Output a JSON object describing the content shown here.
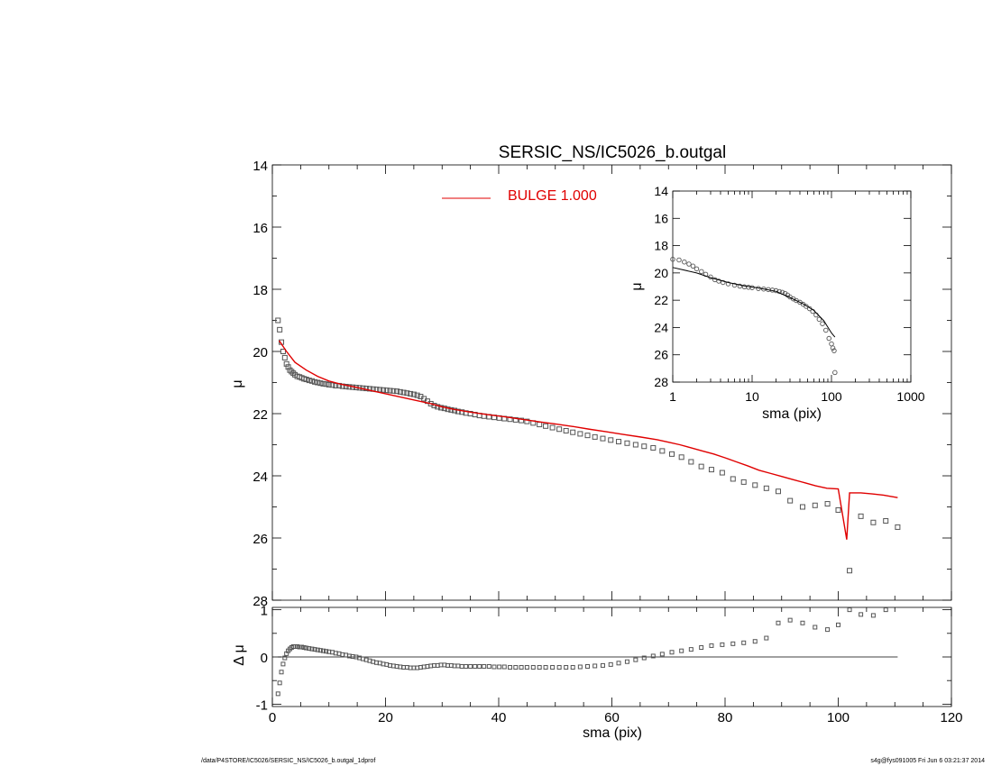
{
  "title": "SERSIC_NS/IC5026_b.outgal",
  "footer": {
    "left": "/data/P4STORE/IC5026/SERSIC_NS/IC5026_b.outgal_1dprof",
    "right": "s4g@fys091005  Fri Jun  6 03:21:37 2014"
  },
  "colors": {
    "model": "#e00000",
    "data": "#555555",
    "axes": "#000000"
  },
  "chart_data": [
    {
      "type": "scatter",
      "panel": "main",
      "title": "SERSIC_NS/IC5026_b.outgal",
      "ylabel": "μ",
      "xlim": [
        0,
        120
      ],
      "ylim": [
        28,
        14
      ],
      "y_inverted": true,
      "yticks": [
        "14",
        "16",
        "18",
        "20",
        "22",
        "24",
        "26",
        "28"
      ],
      "legend": {
        "placement": "top-center",
        "entries": [
          {
            "label": "BULGE  1.000"
          }
        ]
      },
      "series": [
        {
          "role": "data",
          "marker": "square",
          "x": [
            1.0,
            1.3,
            1.6,
            1.9,
            2.2,
            2.5,
            2.8,
            3.1,
            3.4,
            3.7,
            4.0,
            4.4,
            4.8,
            5.2,
            5.6,
            6.0,
            6.5,
            7.0,
            7.5,
            8.0,
            8.5,
            9.0,
            9.5,
            10.0,
            10.6,
            11.2,
            11.8,
            12.4,
            13.0,
            13.6,
            14.2,
            14.8,
            15.4,
            16.0,
            16.6,
            17.2,
            17.8,
            18.4,
            19.0,
            19.6,
            20.2,
            20.8,
            21.4,
            22.0,
            22.6,
            23.2,
            23.8,
            24.4,
            25.0,
            25.6,
            26.2,
            26.8,
            27.4,
            28.0,
            28.6,
            29.2,
            29.8,
            30.4,
            31.0,
            31.6,
            32.2,
            32.8,
            33.5,
            34.2,
            35.0,
            35.8,
            36.6,
            37.4,
            38.3,
            39.2,
            40.1,
            41.0,
            42.0,
            43.0,
            44.0,
            45.0,
            46.1,
            47.2,
            48.3,
            49.5,
            50.7,
            51.9,
            53.1,
            54.4,
            55.7,
            57.0,
            58.4,
            59.8,
            61.2,
            62.7,
            64.2,
            65.7,
            67.3,
            68.9,
            70.6,
            72.3,
            74.0,
            75.8,
            77.6,
            79.5,
            81.4,
            83.3,
            85.3,
            87.3,
            89.4,
            91.5,
            93.7,
            95.9,
            98.1,
            100.0,
            102.0,
            104.0,
            106.2,
            108.4,
            110.5
          ],
          "y": [
            19.0,
            19.3,
            19.7,
            20.0,
            20.2,
            20.4,
            20.5,
            20.6,
            20.65,
            20.7,
            20.75,
            20.8,
            20.82,
            20.85,
            20.88,
            20.9,
            20.93,
            20.95,
            20.98,
            21.0,
            21.02,
            21.04,
            21.05,
            21.07,
            21.08,
            21.1,
            21.1,
            21.12,
            21.13,
            21.14,
            21.15,
            21.16,
            21.17,
            21.18,
            21.19,
            21.2,
            21.21,
            21.22,
            21.23,
            21.24,
            21.25,
            21.26,
            21.27,
            21.28,
            21.3,
            21.32,
            21.34,
            21.36,
            21.38,
            21.41,
            21.45,
            21.52,
            21.6,
            21.68,
            21.74,
            21.78,
            21.81,
            21.83,
            21.86,
            21.88,
            21.9,
            21.93,
            21.95,
            21.98,
            22.0,
            22.03,
            22.06,
            22.08,
            22.1,
            22.12,
            22.14,
            22.16,
            22.18,
            22.2,
            22.22,
            22.25,
            22.3,
            22.35,
            22.4,
            22.45,
            22.5,
            22.55,
            22.6,
            22.65,
            22.7,
            22.75,
            22.8,
            22.85,
            22.9,
            22.95,
            23.0,
            23.05,
            23.1,
            23.2,
            23.3,
            23.4,
            23.55,
            23.7,
            23.8,
            23.9,
            24.1,
            24.2,
            24.3,
            24.4,
            24.5,
            24.8,
            25.0,
            24.95,
            24.9,
            25.1,
            27.05,
            25.3,
            25.5,
            25.45,
            25.65
          ]
        },
        {
          "role": "model",
          "name": "BULGE  1.000",
          "x": [
            1.2,
            2.5,
            4.0,
            6.0,
            8.0,
            10.0,
            12.0,
            14.0,
            16.0,
            18.0,
            20.0,
            22.0,
            24.0,
            26.0,
            28.0,
            30.0,
            32.0,
            35.0,
            38.0,
            41.0,
            44.0,
            47.0,
            50.0,
            53.0,
            56.0,
            59.0,
            62.0,
            65.0,
            68.0,
            70.0,
            72.0,
            74.0,
            76.0,
            78.0,
            80.0,
            82.0,
            84.0,
            86.0,
            88.0,
            90.0,
            92.0,
            94.0,
            96.0,
            98.0,
            100.0,
            101.5,
            102.0,
            104.0,
            106.0,
            108.0,
            110.5
          ],
          "y": [
            19.65,
            20.0,
            20.35,
            20.6,
            20.8,
            20.95,
            21.05,
            21.12,
            21.2,
            21.28,
            21.36,
            21.44,
            21.52,
            21.6,
            21.68,
            21.78,
            21.86,
            21.95,
            22.03,
            22.1,
            22.18,
            22.26,
            22.33,
            22.41,
            22.5,
            22.58,
            22.67,
            22.75,
            22.84,
            22.92,
            23.0,
            23.1,
            23.2,
            23.3,
            23.42,
            23.55,
            23.68,
            23.82,
            23.92,
            24.02,
            24.12,
            24.22,
            24.32,
            24.4,
            24.42,
            26.05,
            24.55,
            24.55,
            24.58,
            24.62,
            24.7
          ]
        }
      ]
    },
    {
      "type": "scatter",
      "panel": "inset",
      "xscale": "log",
      "xlim": [
        1,
        1000
      ],
      "ylim": [
        28,
        14
      ],
      "y_inverted": true,
      "xlabel": "sma (pix)",
      "ylabel": "μ",
      "xticks": [
        "1",
        "10",
        "100",
        "1000"
      ],
      "yticks": [
        "14",
        "16",
        "18",
        "20",
        "22",
        "24",
        "26",
        "28"
      ],
      "series": [
        {
          "role": "data",
          "marker": "circle",
          "x": [
            1.0,
            1.2,
            1.4,
            1.6,
            1.8,
            2.0,
            2.3,
            2.6,
            3.0,
            3.4,
            3.8,
            4.3,
            5.0,
            6.0,
            7.0,
            8.0,
            9.0,
            10.0,
            12.0,
            14.0,
            16.0,
            18.0,
            20.0,
            22.0,
            24.0,
            26.0,
            28.0,
            30.0,
            33.0,
            36.0,
            40.0,
            44.0,
            48.0,
            53.0,
            58.0,
            64.0,
            70.0,
            77.0,
            85.0,
            93.0,
            100.0,
            104.0,
            108.0,
            110.5
          ],
          "y": [
            19.0,
            19.05,
            19.2,
            19.35,
            19.5,
            19.7,
            19.9,
            20.1,
            20.3,
            20.5,
            20.6,
            20.7,
            20.8,
            20.9,
            20.97,
            21.02,
            21.05,
            21.08,
            21.14,
            21.18,
            21.22,
            21.26,
            21.3,
            21.36,
            21.42,
            21.5,
            21.62,
            21.76,
            21.9,
            22.02,
            22.15,
            22.3,
            22.45,
            22.62,
            22.82,
            23.08,
            23.4,
            23.72,
            24.2,
            24.8,
            25.2,
            25.5,
            25.7,
            27.3
          ]
        },
        {
          "role": "model",
          "x": [
            1.0,
            2.0,
            3.0,
            5.0,
            8.0,
            12.0,
            20.0,
            30.0,
            45.0,
            60.0,
            80.0,
            100.0,
            110.5
          ],
          "y": [
            19.6,
            20.0,
            20.35,
            20.7,
            20.95,
            21.1,
            21.35,
            21.8,
            22.3,
            22.75,
            23.5,
            24.4,
            24.7
          ]
        }
      ]
    },
    {
      "type": "scatter",
      "panel": "residual",
      "xlabel": "sma (pix)",
      "ylabel": "Δ μ",
      "xlim": [
        0,
        120
      ],
      "ylim": [
        -1.05,
        1.05
      ],
      "xticks": [
        "0",
        "20",
        "40",
        "60",
        "80",
        "100",
        "120"
      ],
      "yticks": [
        "-1",
        "0",
        "1"
      ],
      "reference_line": 0,
      "series": [
        {
          "role": "residual",
          "marker": "square",
          "x": [
            1.0,
            1.3,
            1.6,
            1.9,
            2.2,
            2.5,
            2.8,
            3.1,
            3.4,
            3.7,
            4.0,
            4.4,
            4.8,
            5.2,
            5.6,
            6.0,
            6.5,
            7.0,
            7.5,
            8.0,
            8.5,
            9.0,
            9.5,
            10.0,
            10.6,
            11.2,
            11.8,
            12.4,
            13.0,
            13.6,
            14.2,
            14.8,
            15.4,
            16.0,
            16.6,
            17.2,
            17.8,
            18.4,
            19.0,
            19.6,
            20.2,
            20.8,
            21.4,
            22.0,
            22.6,
            23.2,
            23.8,
            24.4,
            25.0,
            25.6,
            26.2,
            26.8,
            27.4,
            28.0,
            28.6,
            29.2,
            29.8,
            30.4,
            31.0,
            31.6,
            32.2,
            32.8,
            33.5,
            34.2,
            35.0,
            35.8,
            36.6,
            37.4,
            38.3,
            39.2,
            40.1,
            41.0,
            42.0,
            43.0,
            44.0,
            45.0,
            46.1,
            47.2,
            48.3,
            49.5,
            50.7,
            51.9,
            53.1,
            54.4,
            55.7,
            57.0,
            58.4,
            59.8,
            61.2,
            62.7,
            64.2,
            65.7,
            67.3,
            68.9,
            70.6,
            72.3,
            74.0,
            75.8,
            77.6,
            79.5,
            81.4,
            83.3,
            85.3,
            87.3,
            89.4,
            91.5,
            93.7,
            95.9,
            98.1,
            100.0,
            102.0,
            104.0,
            106.2,
            108.4
          ],
          "y": [
            -0.78,
            -0.55,
            -0.32,
            -0.15,
            -0.02,
            0.07,
            0.13,
            0.17,
            0.2,
            0.22,
            0.22,
            0.22,
            0.21,
            0.21,
            0.2,
            0.19,
            0.18,
            0.17,
            0.16,
            0.15,
            0.14,
            0.13,
            0.12,
            0.11,
            0.1,
            0.08,
            0.07,
            0.05,
            0.04,
            0.02,
            0.01,
            0.0,
            -0.02,
            -0.04,
            -0.06,
            -0.08,
            -0.1,
            -0.12,
            -0.13,
            -0.15,
            -0.16,
            -0.18,
            -0.19,
            -0.2,
            -0.21,
            -0.22,
            -0.22,
            -0.23,
            -0.23,
            -0.23,
            -0.22,
            -0.21,
            -0.2,
            -0.19,
            -0.18,
            -0.18,
            -0.17,
            -0.17,
            -0.18,
            -0.18,
            -0.19,
            -0.19,
            -0.2,
            -0.2,
            -0.2,
            -0.2,
            -0.2,
            -0.2,
            -0.2,
            -0.21,
            -0.21,
            -0.21,
            -0.22,
            -0.22,
            -0.22,
            -0.22,
            -0.22,
            -0.22,
            -0.22,
            -0.22,
            -0.22,
            -0.22,
            -0.22,
            -0.21,
            -0.2,
            -0.19,
            -0.18,
            -0.16,
            -0.13,
            -0.1,
            -0.06,
            -0.02,
            0.02,
            0.06,
            0.1,
            0.13,
            0.16,
            0.2,
            0.24,
            0.26,
            0.28,
            0.3,
            0.33,
            0.4,
            0.72,
            0.78,
            0.72,
            0.63,
            0.58,
            0.68,
            1.0,
            0.9,
            0.88,
            1.0
          ]
        }
      ]
    }
  ]
}
